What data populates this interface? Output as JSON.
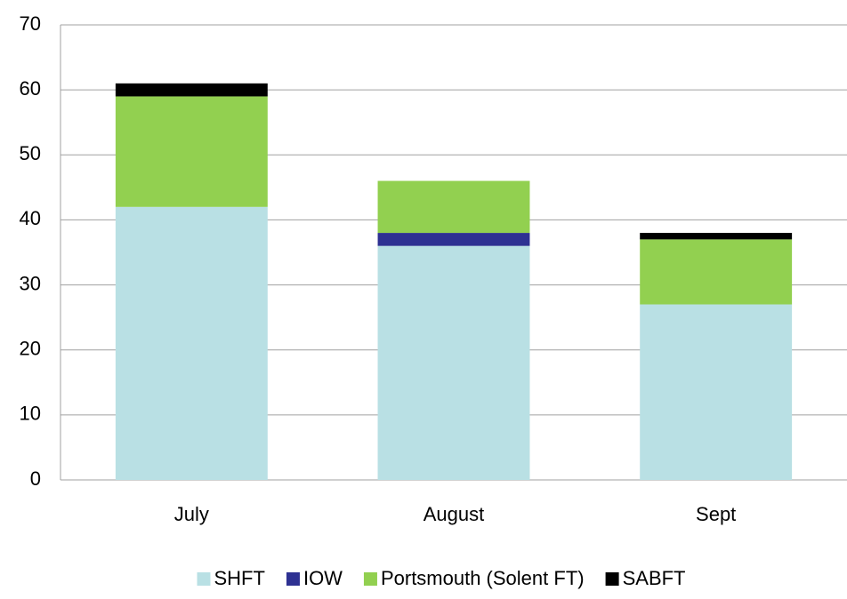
{
  "chart_data": {
    "type": "stacked_bar",
    "categories": [
      "July",
      "August",
      "Sept"
    ],
    "series": [
      {
        "name": "SHFT",
        "color": "#b9e0e4",
        "values": [
          42,
          36,
          27
        ]
      },
      {
        "name": "IOW",
        "color": "#2e3192",
        "values": [
          0,
          2,
          0
        ]
      },
      {
        "name": "Portsmouth (Solent FT)",
        "color": "#92d050",
        "values": [
          17,
          8,
          10
        ]
      },
      {
        "name": "SABFT",
        "color": "#000000",
        "values": [
          2,
          0,
          1
        ]
      }
    ],
    "ylim": [
      0,
      70
    ],
    "yticks": [
      0,
      10,
      20,
      30,
      40,
      50,
      60,
      70
    ],
    "grid": true,
    "legend": "bottom"
  }
}
